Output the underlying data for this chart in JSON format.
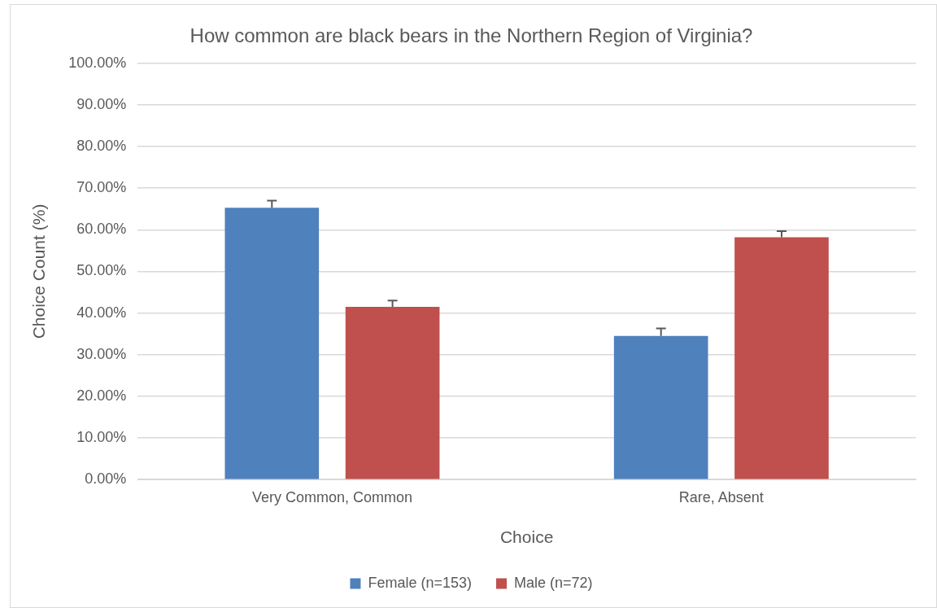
{
  "chart_data": {
    "type": "bar",
    "title": "How common are black bears in the Northern Region of Virginia?",
    "xlabel": "Choice",
    "ylabel": "Choice Count (%)",
    "categories": [
      "Very Common, Common",
      "Rare, Absent"
    ],
    "series": [
      {
        "name": "Female (n=153)",
        "color": "#4f81bd",
        "values": [
          65.3,
          34.5
        ],
        "errors": [
          [
            65.3,
            67.0
          ],
          [
            34.5,
            36.3
          ]
        ]
      },
      {
        "name": "Male (n=72)",
        "color": "#c0504d",
        "values": [
          41.5,
          58.2
        ],
        "errors": [
          [
            41.5,
            43.0
          ],
          [
            58.2,
            59.7
          ]
        ]
      }
    ],
    "ylim": [
      0,
      100
    ],
    "yticks": [
      {
        "value": 0,
        "label": "0.00%"
      },
      {
        "value": 10,
        "label": "10.00%"
      },
      {
        "value": 20,
        "label": "20.00%"
      },
      {
        "value": 30,
        "label": "30.00%"
      },
      {
        "value": 40,
        "label": "40.00%"
      },
      {
        "value": 50,
        "label": "50.00%"
      },
      {
        "value": 60,
        "label": "60.00%"
      },
      {
        "value": 70,
        "label": "70.00%"
      },
      {
        "value": 80,
        "label": "80.00%"
      },
      {
        "value": 90,
        "label": "90.00%"
      },
      {
        "value": 100,
        "label": "100.00%"
      }
    ],
    "grid": "y",
    "legend": "bottom"
  }
}
